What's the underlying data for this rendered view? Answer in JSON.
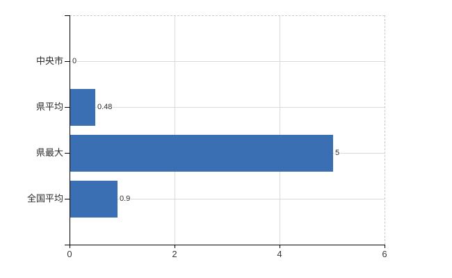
{
  "chart_data": {
    "type": "bar",
    "orientation": "horizontal",
    "title": "",
    "categories": [
      "中央市",
      "県平均",
      "県最大",
      "全国平均"
    ],
    "values": [
      0,
      0.48,
      5,
      0.9
    ],
    "value_labels": [
      "0",
      "0.48",
      "5",
      "0.9"
    ],
    "x_tick_labels": [
      "0",
      "2",
      "4",
      "6"
    ],
    "x_tick_values": [
      0,
      2,
      4,
      6
    ],
    "xlim": [
      0,
      6
    ],
    "grid": true,
    "legend": false,
    "bar_color": "#3b6fb3",
    "grid_color": "#d7dad7",
    "dashed_border_color": "#c9c9c9",
    "axis_color": "#000000",
    "text_color": "#2b2b2b"
  }
}
